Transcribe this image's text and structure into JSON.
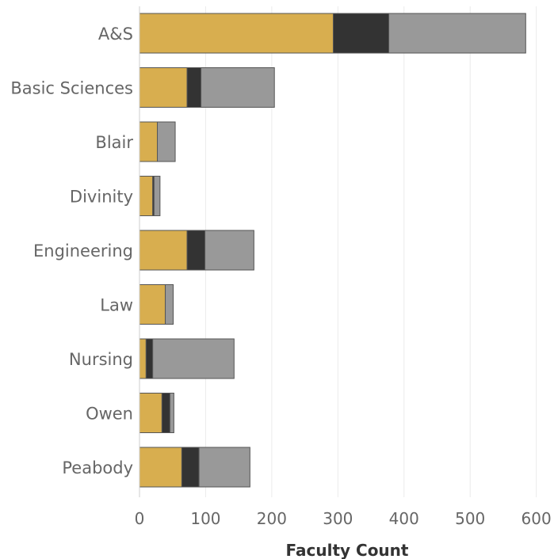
{
  "chart_data": {
    "type": "bar",
    "orientation": "horizontal",
    "stacked": true,
    "categories": [
      "A&S",
      "Basic Sciences",
      "Blair",
      "Divinity",
      "Engineering",
      "Law",
      "Nursing",
      "Owen",
      "Peabody"
    ],
    "series": [
      {
        "color": "#d8ae4f",
        "values": [
          293,
          72,
          27,
          20,
          72,
          39,
          10,
          34,
          64
        ]
      },
      {
        "color": "#333333",
        "values": [
          84,
          21,
          0,
          2,
          27,
          0,
          10,
          12,
          26
        ]
      },
      {
        "color": "#999999",
        "values": [
          207,
          111,
          27,
          9,
          74,
          12,
          123,
          6,
          77
        ]
      }
    ],
    "xlabel": "Faculty Count",
    "ylabel": "",
    "xlim": [
      0,
      610
    ],
    "xticks": [
      0,
      100,
      200,
      300,
      400,
      500,
      600
    ],
    "grid": true,
    "legend": "none"
  }
}
